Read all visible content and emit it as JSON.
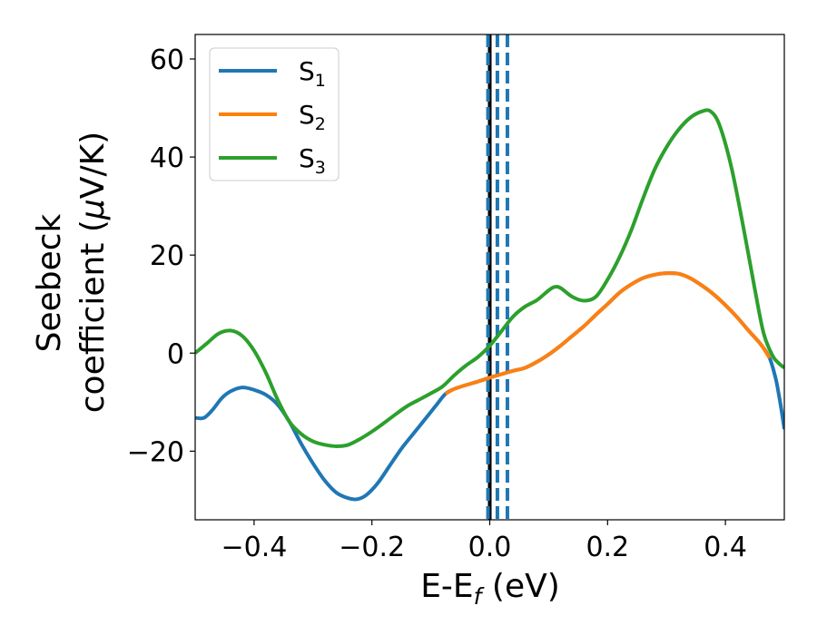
{
  "chart_data": {
    "type": "line",
    "xlabel": {
      "main": "E-E",
      "sub": "f",
      "unit": " (eV)"
    },
    "ylabel": {
      "line1": "Seebeck",
      "line2_main": "coefficient  (",
      "line2_mu": "μ",
      "line2_unit": "V/K)"
    },
    "xlim": [
      -0.5,
      0.5
    ],
    "ylim": [
      -34,
      65
    ],
    "x_ticks": [
      -0.4,
      -0.2,
      0.0,
      0.2,
      0.4
    ],
    "x_tick_labels": [
      "−0.4",
      "−0.2",
      "0.0",
      "0.2",
      "0.4"
    ],
    "y_ticks": [
      -20,
      0,
      20,
      40,
      60
    ],
    "y_tick_labels": [
      "−20",
      "0",
      "20",
      "40",
      "60"
    ],
    "grid": false,
    "legend": {
      "placement": "top-left"
    },
    "reference_lines": {
      "solid": {
        "x": 0.0,
        "color": "#000000"
      },
      "dashed": {
        "x": [
          -0.003,
          0.013,
          0.03
        ],
        "color": "#1f77b4"
      }
    },
    "series": [
      {
        "name": "S",
        "sub": "1",
        "color": "#1f77b4",
        "points": [
          [
            -0.5,
            -13.2
          ],
          [
            -0.485,
            -13.2
          ],
          [
            -0.47,
            -11.5
          ],
          [
            -0.455,
            -9.2
          ],
          [
            -0.44,
            -7.8
          ],
          [
            -0.42,
            -7.0
          ],
          [
            -0.4,
            -7.5
          ],
          [
            -0.38,
            -8.5
          ],
          [
            -0.36,
            -10.5
          ],
          [
            -0.34,
            -14.0
          ],
          [
            -0.32,
            -18.5
          ],
          [
            -0.3,
            -22.5
          ],
          [
            -0.28,
            -26.0
          ],
          [
            -0.26,
            -28.5
          ],
          [
            -0.24,
            -29.6
          ],
          [
            -0.225,
            -29.8
          ],
          [
            -0.21,
            -29.0
          ],
          [
            -0.19,
            -26.5
          ],
          [
            -0.17,
            -23.0
          ],
          [
            -0.15,
            -19.5
          ],
          [
            -0.13,
            -16.5
          ],
          [
            -0.11,
            -13.5
          ],
          [
            -0.09,
            -10.5
          ],
          [
            -0.075,
            -8.3
          ],
          [
            -0.06,
            -7.3
          ],
          [
            -0.04,
            -6.5
          ],
          [
            -0.02,
            -5.8
          ],
          [
            0.0,
            -5.0
          ],
          [
            0.02,
            -4.3
          ],
          [
            0.04,
            -3.6
          ],
          [
            0.06,
            -3.0
          ],
          [
            0.08,
            -1.8
          ],
          [
            0.1,
            -0.3
          ],
          [
            0.12,
            1.5
          ],
          [
            0.14,
            3.5
          ],
          [
            0.16,
            5.5
          ],
          [
            0.18,
            7.8
          ],
          [
            0.2,
            10.0
          ],
          [
            0.22,
            12.3
          ],
          [
            0.24,
            14.0
          ],
          [
            0.26,
            15.3
          ],
          [
            0.28,
            16.0
          ],
          [
            0.3,
            16.3
          ],
          [
            0.32,
            16.2
          ],
          [
            0.34,
            15.3
          ],
          [
            0.36,
            13.8
          ],
          [
            0.38,
            12.0
          ],
          [
            0.4,
            9.8
          ],
          [
            0.42,
            7.3
          ],
          [
            0.44,
            4.5
          ],
          [
            0.46,
            1.8
          ],
          [
            0.475,
            -1.0
          ],
          [
            0.485,
            -5.0
          ],
          [
            0.49,
            -8.0
          ],
          [
            0.495,
            -11.5
          ],
          [
            0.5,
            -15.5
          ]
        ]
      },
      {
        "name": "S",
        "sub": "2",
        "color": "#ff7f0e",
        "points": [
          [
            -0.075,
            -8.3
          ],
          [
            -0.06,
            -7.3
          ],
          [
            -0.04,
            -6.5
          ],
          [
            -0.02,
            -5.8
          ],
          [
            0.0,
            -5.0
          ],
          [
            0.02,
            -4.3
          ],
          [
            0.04,
            -3.6
          ],
          [
            0.06,
            -3.0
          ],
          [
            0.08,
            -1.8
          ],
          [
            0.1,
            -0.3
          ],
          [
            0.12,
            1.5
          ],
          [
            0.14,
            3.5
          ],
          [
            0.16,
            5.5
          ],
          [
            0.18,
            7.8
          ],
          [
            0.2,
            10.0
          ],
          [
            0.22,
            12.3
          ],
          [
            0.24,
            14.0
          ],
          [
            0.26,
            15.3
          ],
          [
            0.28,
            16.0
          ],
          [
            0.3,
            16.3
          ],
          [
            0.32,
            16.2
          ],
          [
            0.34,
            15.3
          ],
          [
            0.36,
            13.8
          ],
          [
            0.38,
            12.0
          ],
          [
            0.4,
            9.8
          ],
          [
            0.42,
            7.3
          ],
          [
            0.44,
            4.5
          ],
          [
            0.46,
            1.8
          ],
          [
            0.475,
            -1.0
          ]
        ]
      },
      {
        "name": "S",
        "sub": "3",
        "color": "#2ca02c",
        "points": [
          [
            -0.5,
            0.0
          ],
          [
            -0.48,
            2.0
          ],
          [
            -0.46,
            4.0
          ],
          [
            -0.44,
            4.6
          ],
          [
            -0.42,
            3.5
          ],
          [
            -0.4,
            0.5
          ],
          [
            -0.38,
            -4.0
          ],
          [
            -0.36,
            -9.5
          ],
          [
            -0.34,
            -14.0
          ],
          [
            -0.32,
            -16.5
          ],
          [
            -0.3,
            -18.0
          ],
          [
            -0.28,
            -18.7
          ],
          [
            -0.26,
            -19.0
          ],
          [
            -0.24,
            -18.7
          ],
          [
            -0.22,
            -17.5
          ],
          [
            -0.2,
            -16.0
          ],
          [
            -0.18,
            -14.3
          ],
          [
            -0.16,
            -12.5
          ],
          [
            -0.14,
            -10.8
          ],
          [
            -0.12,
            -9.5
          ],
          [
            -0.1,
            -8.2
          ],
          [
            -0.08,
            -6.8
          ],
          [
            -0.06,
            -4.5
          ],
          [
            -0.04,
            -2.5
          ],
          [
            -0.02,
            -0.8
          ],
          [
            0.0,
            1.5
          ],
          [
            0.02,
            4.5
          ],
          [
            0.04,
            7.5
          ],
          [
            0.06,
            9.5
          ],
          [
            0.08,
            10.8
          ],
          [
            0.1,
            12.8
          ],
          [
            0.11,
            13.5
          ],
          [
            0.12,
            13.3
          ],
          [
            0.14,
            11.5
          ],
          [
            0.16,
            10.7
          ],
          [
            0.18,
            11.5
          ],
          [
            0.2,
            15.0
          ],
          [
            0.22,
            19.5
          ],
          [
            0.24,
            25.0
          ],
          [
            0.26,
            31.5
          ],
          [
            0.28,
            37.5
          ],
          [
            0.3,
            42.0
          ],
          [
            0.32,
            45.5
          ],
          [
            0.34,
            48.0
          ],
          [
            0.36,
            49.3
          ],
          [
            0.375,
            49.3
          ],
          [
            0.39,
            46.5
          ],
          [
            0.41,
            38.0
          ],
          [
            0.43,
            26.0
          ],
          [
            0.45,
            13.0
          ],
          [
            0.465,
            4.0
          ],
          [
            0.48,
            -0.5
          ],
          [
            0.49,
            -2.0
          ],
          [
            0.5,
            -3.0
          ]
        ]
      }
    ]
  }
}
